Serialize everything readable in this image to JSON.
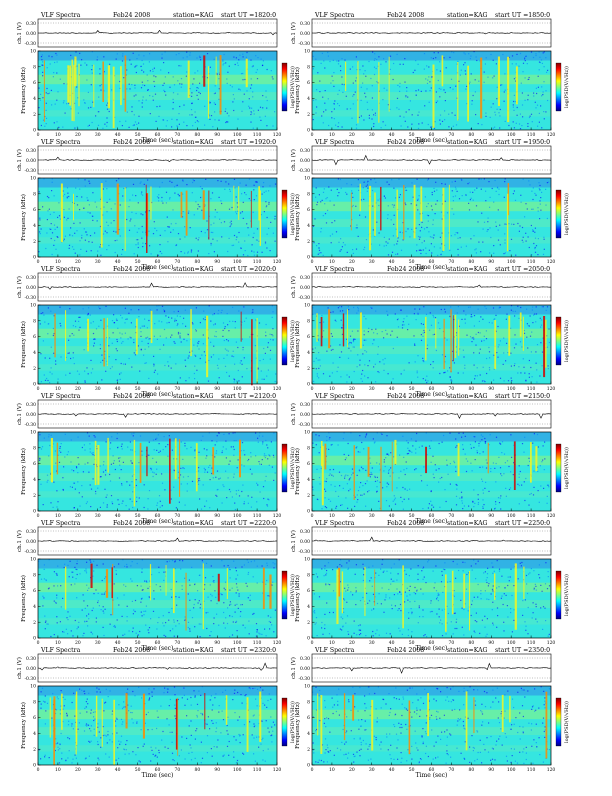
{
  "common": {
    "title": "VLF Spectra",
    "date": "Feb24 2008",
    "station": "station=KAG",
    "start_prefix": "start UT =",
    "channel_label": "ch.1 (V)",
    "freq_label": "Frequency (kHz)",
    "time_label": "Time (sec)",
    "cbar_label": "log(PSD(V/√Hz))",
    "amp_ticks": [
      "0.30",
      "0.00",
      "-0.30"
    ]
  },
  "panels": [
    {
      "start": "1820:0"
    },
    {
      "start": "1850:0"
    },
    {
      "start": "1920:0"
    },
    {
      "start": "1950:0"
    },
    {
      "start": "2020:0"
    },
    {
      "start": "2050:0"
    },
    {
      "start": "2120:0"
    },
    {
      "start": "2150:0"
    },
    {
      "start": "2220:0"
    },
    {
      "start": "2250:0"
    },
    {
      "start": "2320:0"
    },
    {
      "start": "2350:0"
    }
  ],
  "chart_data": {
    "type": "heatmap",
    "colormap": [
      "#00007f",
      "#0000ff",
      "#007fff",
      "#00ffff",
      "#7fff7f",
      "#ffff00",
      "#ff7f00",
      "#ff0000",
      "#7f0000"
    ],
    "x_ticks": [
      0,
      10,
      20,
      30,
      40,
      50,
      60,
      70,
      80,
      90,
      100,
      110,
      120
    ],
    "y_ticks": [
      0,
      2,
      4,
      6,
      8,
      10
    ],
    "xlim": [
      0,
      120
    ],
    "ylim": [
      0,
      10
    ]
  }
}
